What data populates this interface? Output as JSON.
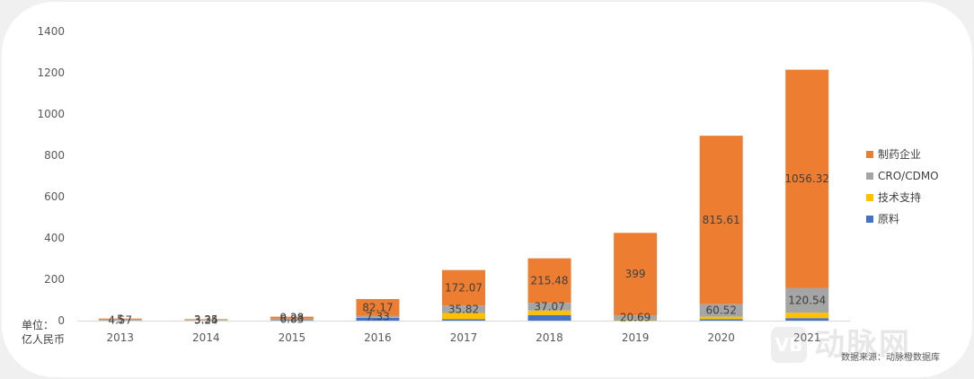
{
  "chart_data": {
    "type": "bar",
    "stacked": true,
    "categories": [
      "2013",
      "2014",
      "2015",
      "2016",
      "2017",
      "2018",
      "2019",
      "2020",
      "2021"
    ],
    "series": [
      {
        "name": "原料",
        "color": "#4472c4",
        "values": [
          0,
          0,
          2,
          13,
          7,
          27,
          2,
          7,
          12
        ]
      },
      {
        "name": "技术支持",
        "color": "#ffc000",
        "values": [
          0.5,
          0.5,
          1,
          2,
          30,
          22,
          3,
          12,
          26
        ]
      },
      {
        "name": "CRO/CDMO",
        "color": "#a5a5a5",
        "values": [
          4.57,
          3.24,
          6.83,
          7.33,
          35.82,
          37.07,
          20.69,
          60.52,
          120.54
        ]
      },
      {
        "name": "制药企业",
        "color": "#ed7d31",
        "values": [
          5,
          3.35,
          9.28,
          82.17,
          172.07,
          215.48,
          399,
          815.61,
          1056.32
        ]
      }
    ],
    "data_labels": [
      {
        "category": "2013",
        "series": "CRO/CDMO",
        "text": "4.57"
      },
      {
        "category": "2013",
        "series": "制药企业",
        "text": "5"
      },
      {
        "category": "2014",
        "series": "CRO/CDMO",
        "text": "3.24"
      },
      {
        "category": "2014",
        "series": "制药企业",
        "text": "3.35"
      },
      {
        "category": "2015",
        "series": "CRO/CDMO",
        "text": "6.83"
      },
      {
        "category": "2015",
        "series": "制药企业",
        "text": "9.28"
      },
      {
        "category": "2016",
        "series": "CRO/CDMO",
        "text": "7.33"
      },
      {
        "category": "2016",
        "series": "制药企业",
        "text": "82.17"
      },
      {
        "category": "2017",
        "series": "CRO/CDMO",
        "text": "35.82"
      },
      {
        "category": "2017",
        "series": "制药企业",
        "text": "172.07"
      },
      {
        "category": "2018",
        "series": "CRO/CDMO",
        "text": "37.07"
      },
      {
        "category": "2018",
        "series": "制药企业",
        "text": "215.48"
      },
      {
        "category": "2019",
        "series": "CRO/CDMO",
        "text": "20.69"
      },
      {
        "category": "2019",
        "series": "制药企业",
        "text": "399"
      },
      {
        "category": "2020",
        "series": "CRO/CDMO",
        "text": "60.52"
      },
      {
        "category": "2020",
        "series": "制药企业",
        "text": "815.61"
      },
      {
        "category": "2021",
        "series": "CRO/CDMO",
        "text": "120.54"
      },
      {
        "category": "2021",
        "series": "制药企业",
        "text": "1056.32"
      }
    ],
    "yticks": [
      0,
      200,
      400,
      600,
      800,
      1000,
      1200,
      1400
    ],
    "ylim": [
      0,
      1400
    ],
    "ylabel": "单位：亿人民币",
    "grid": false,
    "legend_position": "right"
  },
  "unit_label_line1": "单位：",
  "unit_label_line2": "亿人民币",
  "legend_order": [
    "制药企业",
    "CRO/CDMO",
    "技术支持",
    "原料"
  ],
  "source_text": "数据来源：动脉橙数据库",
  "watermark": {
    "logo_text": "VB",
    "text": "动脉网"
  }
}
